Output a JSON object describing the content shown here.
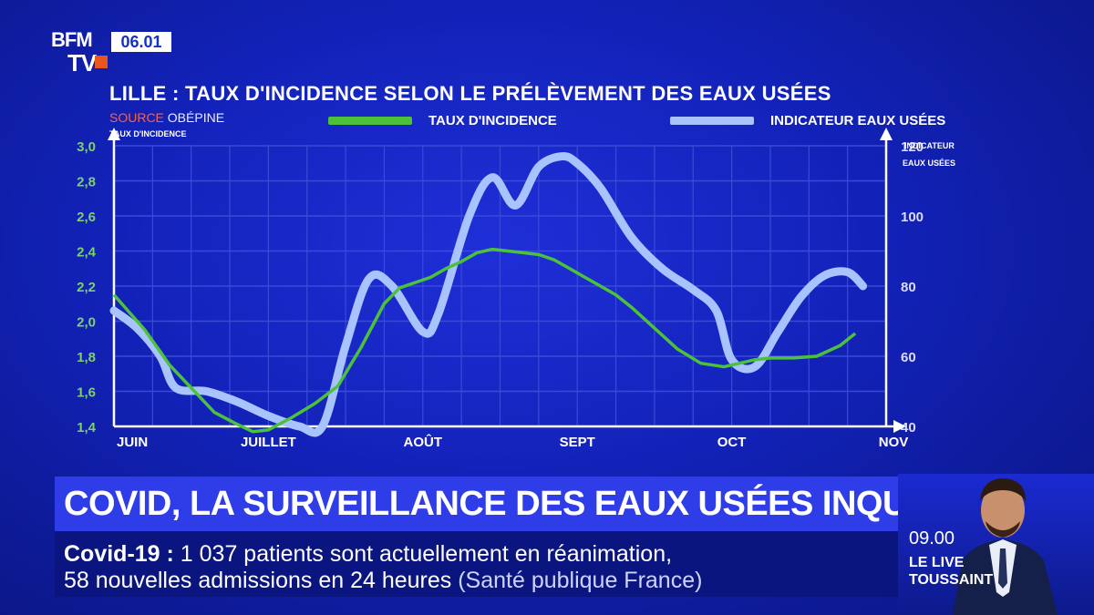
{
  "channel": {
    "logo_top": "BFM",
    "logo_bottom": "TV",
    "clock": "06.01"
  },
  "colors": {
    "background": "#1222b8",
    "incidence": "#4cc23a",
    "wastewater": "#a9c3ff",
    "source_label": "#ff6040",
    "banner": "#2f3de8"
  },
  "chart_data": {
    "type": "line",
    "title": "LILLE : TAUX D'INCIDENCE SELON LE PRÉLÈVEMENT DES EAUX USÉES",
    "source_label": "SOURCE",
    "source_name": "OBÉPINE",
    "ylabel_left": "TAUX D'INCIDENCE",
    "ylabel_right_line1": "INDICATEUR",
    "ylabel_right_line2": "EAUX USÉES",
    "x_ticks": [
      "JUIN",
      "JUILLET",
      "AOÛT",
      "SEPT",
      "OCT",
      "NOV"
    ],
    "x_tick_months": [
      0,
      1,
      2,
      3,
      4,
      5
    ],
    "xlim": [
      0,
      5
    ],
    "y_left_ticks": [
      "1,4",
      "1,6",
      "1,8",
      "2,0",
      "2,2",
      "2,4",
      "2,6",
      "2,8",
      "3,0"
    ],
    "ylim_left": [
      1.4,
      3.0
    ],
    "y_right_ticks": [
      "40",
      "60",
      "80",
      "100",
      "120"
    ],
    "ylim_right": [
      40,
      120
    ],
    "grid": true,
    "legend_position": "top",
    "series": [
      {
        "name": "TAUX D'INCIDENCE",
        "axis": "left",
        "x": [
          0.0,
          0.1,
          0.2,
          0.28,
          0.36,
          0.5,
          0.65,
          0.78,
          0.9,
          1.0,
          1.15,
          1.3,
          1.45,
          1.6,
          1.75,
          1.85,
          1.95,
          2.05,
          2.15,
          2.25,
          2.35,
          2.45,
          2.55,
          2.65,
          2.75,
          2.85,
          2.95,
          3.05,
          3.15,
          3.25,
          3.35,
          3.5,
          3.65,
          3.8,
          3.95,
          4.05,
          4.15,
          4.25,
          4.4,
          4.55,
          4.7,
          4.8
        ],
        "y": [
          2.15,
          2.05,
          1.95,
          1.85,
          1.75,
          1.62,
          1.48,
          1.42,
          1.37,
          1.38,
          1.45,
          1.53,
          1.63,
          1.85,
          2.1,
          2.19,
          2.22,
          2.25,
          2.3,
          2.34,
          2.39,
          2.41,
          2.4,
          2.39,
          2.38,
          2.35,
          2.3,
          2.25,
          2.2,
          2.15,
          2.08,
          1.96,
          1.84,
          1.76,
          1.74,
          1.76,
          1.78,
          1.79,
          1.79,
          1.8,
          1.86,
          1.93
        ]
      },
      {
        "name": "INDICATEUR EAUX USÉES",
        "axis": "right",
        "x": [
          0.0,
          0.15,
          0.3,
          0.4,
          0.6,
          0.8,
          1.0,
          1.2,
          1.35,
          1.5,
          1.65,
          1.8,
          2.0,
          2.1,
          2.3,
          2.45,
          2.6,
          2.75,
          2.9,
          3.0,
          3.15,
          3.35,
          3.55,
          3.75,
          3.9,
          4.0,
          4.15,
          4.3,
          4.45,
          4.6,
          4.75,
          4.85
        ],
        "y": [
          73,
          68,
          60,
          51,
          50,
          47,
          43,
          40,
          40,
          63,
          82,
          80,
          67,
          72,
          100,
          111,
          103,
          114,
          117,
          115,
          108,
          94,
          85,
          79,
          73,
          59,
          57,
          67,
          77,
          83,
          84,
          80
        ]
      }
    ]
  },
  "banner": {
    "headline": "COVID, LA SURVEILLANCE DES EAUX USÉES INQUIÈTE"
  },
  "ticker": {
    "label": "Covid-19  :",
    "line1_text": " 1 037 patients sont actuellement en réanimation,",
    "line2_text": "58 nouvelles admissions en 24 heures ",
    "line2_source": "(Santé publique France)"
  },
  "show": {
    "time": "09.00",
    "name_line1": "LE LIVE",
    "name_line2": "TOUSSAINT"
  }
}
